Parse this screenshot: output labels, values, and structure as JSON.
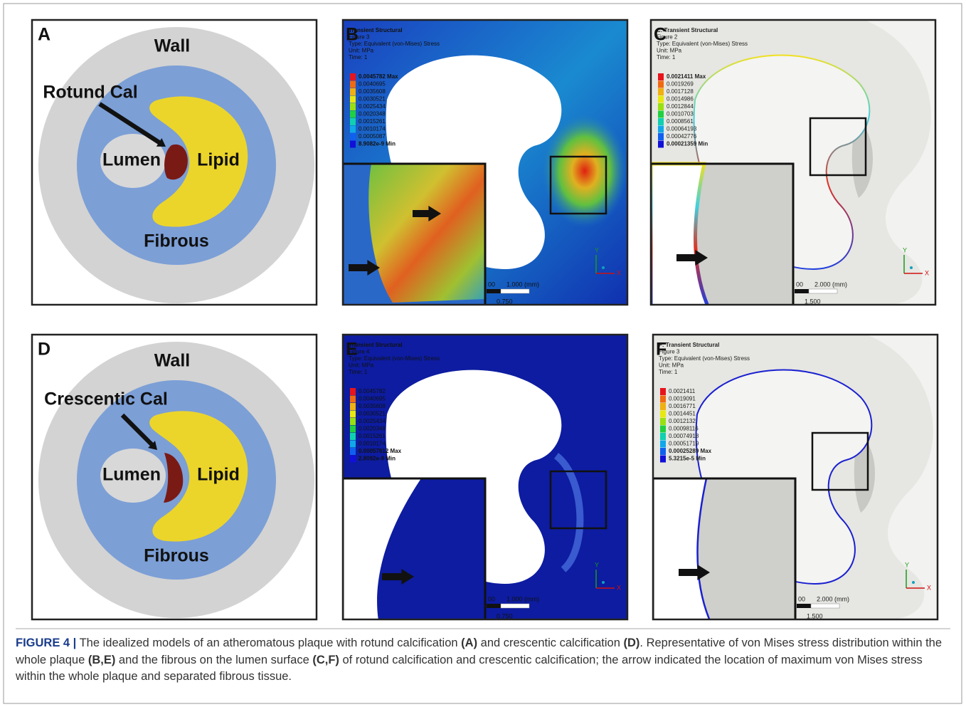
{
  "schematics": [
    {
      "label": "A",
      "wall": "Wall",
      "calcification": "Rotund Cal",
      "lumen": "Lumen",
      "lipid": "Lipid",
      "fibrous": "Fibrous"
    },
    {
      "label": "D",
      "wall": "Wall",
      "calcification": "Crescentic Cal",
      "lumen": "Lumen",
      "lipid": "Lipid",
      "fibrous": "Fibrous"
    }
  ],
  "simulations": [
    {
      "label": "B",
      "header": [
        "Transient Structural",
        "Figure 3",
        "Type: Equivalent (von-Mises) Stress",
        "Unit: MPa",
        "Time: 1"
      ],
      "legend": [
        "0.0045782 Max",
        "0.0040695",
        "0.0035608",
        "0.0030521",
        "0.0025434",
        "0.0020348",
        "0.0015261",
        "0.0010174",
        "0.0005087",
        "8.9082e-9 Min"
      ],
      "scale": [
        "00",
        "1.000 (mm)",
        "0.750"
      ],
      "axes": [
        "Y",
        "X"
      ]
    },
    {
      "label": "C",
      "header": [
        "C: Transient Structural",
        "Figure 2",
        "Type: Equivalent (von-Mises) Stress",
        "Unit: MPa",
        "Time: 1"
      ],
      "legend": [
        "0.0021411 Max",
        "0.0019269",
        "0.0017128",
        "0.0014986",
        "0.0012844",
        "0.0010703",
        "0.0008561",
        "0.00064193",
        "0.00042776",
        "0.00021359 Min"
      ],
      "scale": [
        "00",
        "2.000 (mm)",
        "1.500"
      ],
      "axes": [
        "Y",
        "X"
      ]
    },
    {
      "label": "E",
      "header": [
        "Transient Structural",
        "Figure 4",
        "Type: Equivalent (von-Mises) Stress",
        "Unit: MPa",
        "Time: 1"
      ],
      "legend": [
        "0.0045782",
        "0.0040695",
        "0.0035608",
        "0.0030521",
        "0.0025434",
        "0.0020348",
        "0.0015261",
        "0.0010174",
        "0.00057812 Max",
        "2.8092e-9 Min"
      ],
      "scale": [
        "00",
        "1.000 (mm)",
        "0.750"
      ],
      "axes": [
        "Y",
        "X"
      ]
    },
    {
      "label": "F",
      "header": [
        "F: Transient Structural",
        "Figure 3",
        "Type: Equivalent (von-Mises) Stress",
        "Unit: MPa",
        "Time: 1"
      ],
      "legend": [
        "0.0021411",
        "0.0019091",
        "0.0016771",
        "0.0014451",
        "0.0012132",
        "0.00098116",
        "0.00074918",
        "0.00051719",
        "0.00025289 Max",
        "5.3215e-5 Min"
      ],
      "scale": [
        "00",
        "2.000 (mm)",
        "1.500"
      ],
      "axes": [
        "Y",
        "X"
      ]
    }
  ],
  "caption": {
    "figure": "FIGURE 4 |",
    "segments": [
      {
        "text": " The idealized models of an atheromatous plaque with rotund calcification ",
        "bold": false
      },
      {
        "text": "(A)",
        "bold": true
      },
      {
        "text": " and crescentic calcification ",
        "bold": false
      },
      {
        "text": "(D)",
        "bold": true
      },
      {
        "text": ". Representative of von Mises stress distribution within the whole plaque ",
        "bold": false
      },
      {
        "text": "(B,E)",
        "bold": true
      },
      {
        "text": " and the fibrous on the lumen surface ",
        "bold": false
      },
      {
        "text": "(C,F)",
        "bold": true
      },
      {
        "text": " of rotund calcification and crescentic calcification; the arrow indicated the location of maximum von Mises stress within the whole plaque and separated fibrous tissue.",
        "bold": false
      }
    ]
  }
}
